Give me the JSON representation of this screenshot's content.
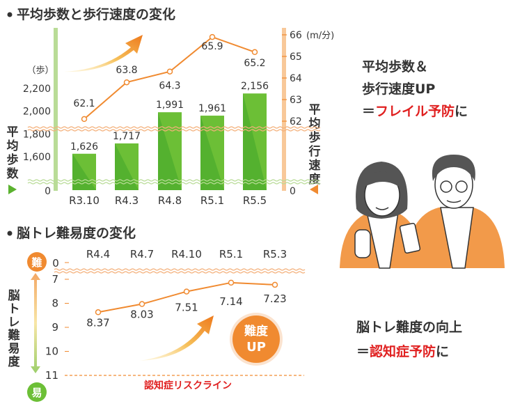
{
  "chart_data": [
    {
      "type": "bar+line",
      "title": "平均歩数と歩行速度の変化",
      "categories": [
        "R3.10",
        "R4.3",
        "R4.8",
        "R5.1",
        "R5.5"
      ],
      "series": [
        {
          "name": "平均歩数",
          "type": "bar",
          "axis": "left",
          "values": [
            1626,
            1717,
            1991,
            1961,
            2156
          ],
          "labels": [
            "1,626",
            "1,717",
            "1,991",
            "1,961",
            "2,156"
          ],
          "color": "#5bb22f"
        },
        {
          "name": "平均歩行速度",
          "type": "line",
          "axis": "right",
          "values": [
            62.1,
            63.8,
            64.3,
            65.9,
            65.2
          ],
          "labels": [
            "62.1",
            "63.8",
            "64.3",
            "65.9",
            "65.2"
          ],
          "color": "#f08a30"
        }
      ],
      "left_axis": {
        "label": "平均歩数",
        "unit": "（歩）",
        "ticks": [
          "2,200",
          "2,000",
          "1,800",
          "1,600",
          "0"
        ],
        "tick_values": [
          2200,
          2000,
          1800,
          1600
        ],
        "range": [
          1600,
          2200
        ],
        "broken": true
      },
      "right_axis": {
        "label": "平均歩行速度",
        "unit": "(m/分)",
        "ticks": [
          "66",
          "65",
          "64",
          "63",
          "62",
          "0"
        ],
        "tick_values": [
          66,
          65,
          64,
          63,
          62
        ],
        "range": [
          62,
          66
        ],
        "broken": true
      }
    },
    {
      "type": "line",
      "title": "脳トレ難易度の変化",
      "categories": [
        "R4.4",
        "R4.7",
        "R4.10",
        "R5.1",
        "R5.3"
      ],
      "values": [
        8.37,
        8.03,
        7.51,
        7.14,
        7.23
      ],
      "labels": [
        "8.37",
        "8.03",
        "7.51",
        "7.14",
        "7.23"
      ],
      "y_axis": {
        "label": "脳トレ難易度",
        "ticks": [
          "0",
          "7",
          "8",
          "9",
          "10",
          "11"
        ],
        "tick_values": [
          7,
          8,
          9,
          10,
          11
        ],
        "inverted": true,
        "broken": true,
        "top_badge": "難",
        "bottom_badge": "易"
      },
      "reference_line": {
        "value": 11,
        "label": "認知症リスクライン",
        "color": "#e02020"
      },
      "badge": {
        "line1": "難度",
        "line2": "UP"
      },
      "color": "#f08a30"
    }
  ],
  "side_text": {
    "top": {
      "line1": "平均歩数＆",
      "line2": "歩行速度UP",
      "line3_prefix": "＝",
      "line3_red": "フレイル予防",
      "line3_suffix": "に"
    },
    "bottom": {
      "line1": "脳トレ難度の向上",
      "line2_prefix": "＝",
      "line2_red": "認知症予防",
      "line2_suffix": "に"
    }
  },
  "colors": {
    "green": "#5bb22f",
    "orange": "#f08a30",
    "red": "#e02020"
  }
}
